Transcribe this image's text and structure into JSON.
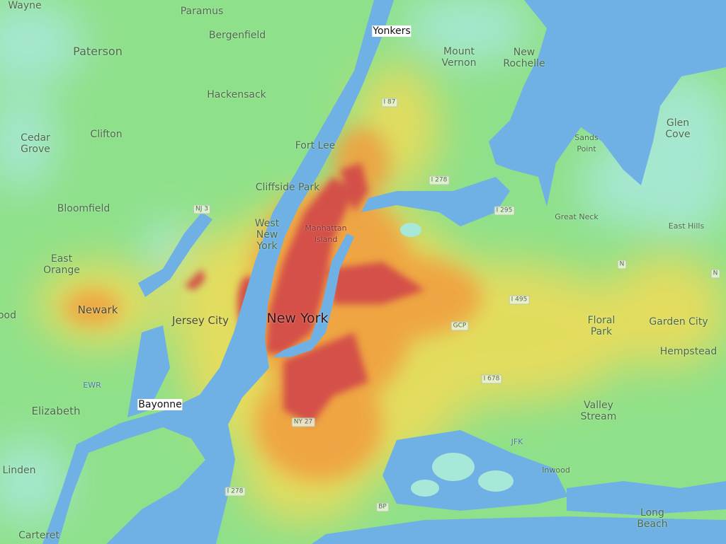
{
  "map": {
    "colors": {
      "water": "#6fb1e4",
      "land_low": "#8fe08a",
      "land_cool": "#a8e8d8",
      "heat_mid": "#f2d552",
      "heat_high": "#f0a040",
      "heat_max": "#d24a4a"
    },
    "places": [
      {
        "name": "Wayne"
      },
      {
        "name": "Paramus"
      },
      {
        "name": "Yonkers"
      },
      {
        "name": "Bergenfield"
      },
      {
        "name": "Paterson"
      },
      {
        "name": "Mount\nVernon"
      },
      {
        "name": "New\nRochelle"
      },
      {
        "name": "Hackensack"
      },
      {
        "name": "Cedar\nGrove"
      },
      {
        "name": "Clifton"
      },
      {
        "name": "Fort Lee"
      },
      {
        "name": "Glen\nCove"
      },
      {
        "name": "Sands\nPoint"
      },
      {
        "name": "Cliffside Park"
      },
      {
        "name": "Bloomfield"
      },
      {
        "name": "West\nNew\nYork"
      },
      {
        "name": "Great Neck"
      },
      {
        "name": "East Hills"
      },
      {
        "name": "Manhattan\nIsland"
      },
      {
        "name": "East\nOrange"
      },
      {
        "name": "Newark"
      },
      {
        "name": "Jersey City"
      },
      {
        "name": "New York"
      },
      {
        "name": "Floral\nPark"
      },
      {
        "name": "Garden City"
      },
      {
        "name": "Hempstead"
      },
      {
        "name": "Bayonne"
      },
      {
        "name": "Elizabeth"
      },
      {
        "name": "Valley\nStream"
      },
      {
        "name": "Linden"
      },
      {
        "name": "Inwood"
      },
      {
        "name": "Carteret"
      },
      {
        "name": "Long\nBeach"
      },
      {
        "name": "ood"
      }
    ],
    "shields": [
      "I 87",
      "I 278",
      "NJ 3",
      "I 295",
      "I 495",
      "GCP",
      "I 678",
      "NY 27",
      "I 278",
      "BP",
      "N",
      "N",
      "EWR",
      "JFK"
    ]
  }
}
